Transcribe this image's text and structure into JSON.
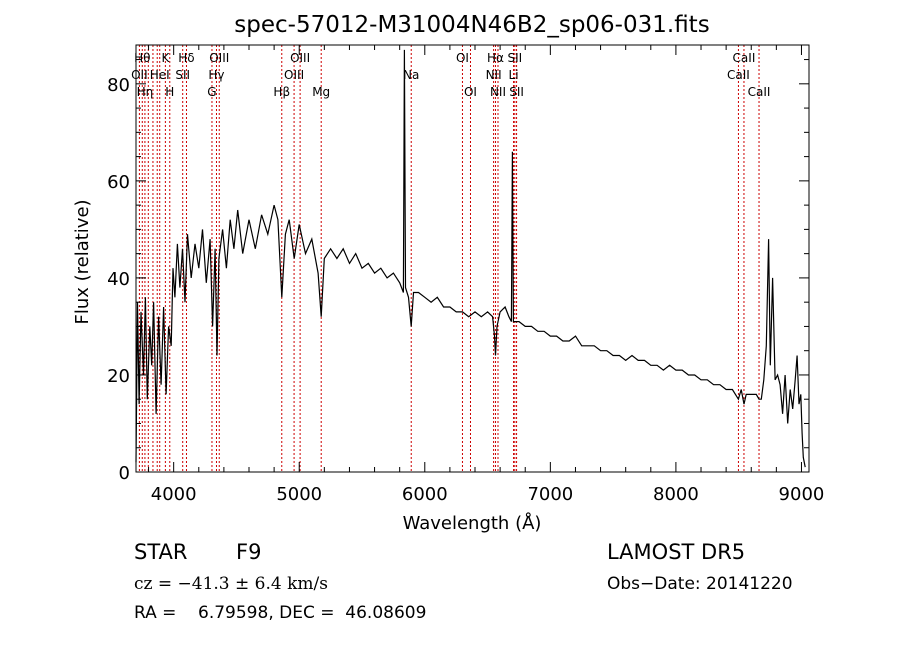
{
  "chart_data": {
    "type": "line",
    "title": "spec-57012-M31004N46B2_sp06-031.fits",
    "xlabel": "Wavelength (Å)",
    "ylabel": "Flux (relative)",
    "xlim": [
      3700,
      9060
    ],
    "ylim": [
      0,
      88
    ],
    "xticks": [
      4000,
      5000,
      6000,
      7000,
      8000,
      9000
    ],
    "yticks": [
      0,
      20,
      40,
      60,
      80
    ],
    "xtick_labels": [
      "4000",
      "5000",
      "6000",
      "7000",
      "8000",
      "9000"
    ],
    "ytick_labels": [
      "0",
      "20",
      "40",
      "60",
      "80"
    ],
    "grid": false,
    "line_color": "#000000",
    "marker_color": "#cc0000",
    "lines": [
      {
        "w": 3727,
        "label": "OII",
        "row": 2
      },
      {
        "w": 3750,
        "label": "Hθ",
        "row": 1
      },
      {
        "w": 3771,
        "label": "Hη",
        "row": 3
      },
      {
        "w": 3798,
        "label": "",
        "row": 0
      },
      {
        "w": 3835,
        "label": "",
        "row": 0
      },
      {
        "w": 3869,
        "label": "",
        "row": 0
      },
      {
        "w": 3889,
        "label": "HeI",
        "row": 2
      },
      {
        "w": 3934,
        "label": "K",
        "row": 1
      },
      {
        "w": 3969,
        "label": "H",
        "row": 3
      },
      {
        "w": 4072,
        "label": "SII",
        "row": 2
      },
      {
        "w": 4102,
        "label": "Hδ",
        "row": 1
      },
      {
        "w": 4305,
        "label": "G",
        "row": 3
      },
      {
        "w": 4341,
        "label": "Hγ",
        "row": 2
      },
      {
        "w": 4363,
        "label": "OIII",
        "row": 1
      },
      {
        "w": 4861,
        "label": "Hβ",
        "row": 3
      },
      {
        "w": 4959,
        "label": "OIII",
        "row": 2
      },
      {
        "w": 5007,
        "label": "OIII",
        "row": 1
      },
      {
        "w": 5175,
        "label": "Mg",
        "row": 3
      },
      {
        "w": 5892,
        "label": "Na",
        "row": 2
      },
      {
        "w": 6300,
        "label": "OI",
        "row": 1
      },
      {
        "w": 6364,
        "label": "OI",
        "row": 3
      },
      {
        "w": 6548,
        "label": "NII",
        "row": 2
      },
      {
        "w": 6563,
        "label": "Hα",
        "row": 1
      },
      {
        "w": 6583,
        "label": "NII",
        "row": 3
      },
      {
        "w": 6707,
        "label": "Li",
        "row": 2
      },
      {
        "w": 6717,
        "label": "SII",
        "row": 1
      },
      {
        "w": 6731,
        "label": "SII",
        "row": 3
      },
      {
        "w": 8498,
        "label": "CaII",
        "row": 2
      },
      {
        "w": 8542,
        "label": "CaII",
        "row": 1
      },
      {
        "w": 8662,
        "label": "CaII",
        "row": 3
      }
    ],
    "spectrum": [
      [
        3700,
        2
      ],
      [
        3712,
        35
      ],
      [
        3725,
        14
      ],
      [
        3740,
        33
      ],
      [
        3760,
        20
      ],
      [
        3775,
        36
      ],
      [
        3790,
        15
      ],
      [
        3810,
        30
      ],
      [
        3825,
        22
      ],
      [
        3840,
        35
      ],
      [
        3860,
        12
      ],
      [
        3880,
        32
      ],
      [
        3900,
        18
      ],
      [
        3920,
        34
      ],
      [
        3940,
        16
      ],
      [
        3960,
        30
      ],
      [
        3980,
        26
      ],
      [
        3995,
        42
      ],
      [
        4010,
        36
      ],
      [
        4030,
        47
      ],
      [
        4050,
        38
      ],
      [
        4070,
        46
      ],
      [
        4090,
        35
      ],
      [
        4110,
        49
      ],
      [
        4140,
        40
      ],
      [
        4170,
        47
      ],
      [
        4200,
        42
      ],
      [
        4230,
        50
      ],
      [
        4260,
        39
      ],
      [
        4290,
        48
      ],
      [
        4310,
        30
      ],
      [
        4330,
        46
      ],
      [
        4345,
        24
      ],
      [
        4360,
        44
      ],
      [
        4390,
        50
      ],
      [
        4420,
        42
      ],
      [
        4450,
        52
      ],
      [
        4480,
        46
      ],
      [
        4510,
        54
      ],
      [
        4550,
        45
      ],
      [
        4600,
        52
      ],
      [
        4650,
        46
      ],
      [
        4700,
        53
      ],
      [
        4750,
        49
      ],
      [
        4800,
        55
      ],
      [
        4830,
        52
      ],
      [
        4861,
        36
      ],
      [
        4890,
        49
      ],
      [
        4920,
        52
      ],
      [
        4960,
        44
      ],
      [
        5000,
        51
      ],
      [
        5050,
        45
      ],
      [
        5100,
        48
      ],
      [
        5150,
        41
      ],
      [
        5175,
        32
      ],
      [
        5200,
        44
      ],
      [
        5250,
        46
      ],
      [
        5300,
        44
      ],
      [
        5350,
        46
      ],
      [
        5400,
        43
      ],
      [
        5450,
        45
      ],
      [
        5500,
        42
      ],
      [
        5550,
        43
      ],
      [
        5600,
        41
      ],
      [
        5650,
        42
      ],
      [
        5700,
        40
      ],
      [
        5750,
        41
      ],
      [
        5800,
        39
      ],
      [
        5830,
        37
      ],
      [
        5838,
        87
      ],
      [
        5846,
        38
      ],
      [
        5870,
        36
      ],
      [
        5892,
        30
      ],
      [
        5910,
        37
      ],
      [
        5950,
        37
      ],
      [
        6000,
        36
      ],
      [
        6050,
        35
      ],
      [
        6100,
        36
      ],
      [
        6150,
        34
      ],
      [
        6200,
        34
      ],
      [
        6250,
        33
      ],
      [
        6300,
        33
      ],
      [
        6350,
        32
      ],
      [
        6400,
        33
      ],
      [
        6450,
        32
      ],
      [
        6500,
        33
      ],
      [
        6540,
        32
      ],
      [
        6555,
        28
      ],
      [
        6563,
        24
      ],
      [
        6575,
        30
      ],
      [
        6600,
        33
      ],
      [
        6640,
        34
      ],
      [
        6670,
        32
      ],
      [
        6690,
        31
      ],
      [
        6698,
        66
      ],
      [
        6706,
        31
      ],
      [
        6750,
        31
      ],
      [
        6800,
        30
      ],
      [
        6850,
        30
      ],
      [
        6900,
        29
      ],
      [
        6950,
        29
      ],
      [
        7000,
        28
      ],
      [
        7050,
        28
      ],
      [
        7100,
        27
      ],
      [
        7150,
        27
      ],
      [
        7200,
        28
      ],
      [
        7250,
        26
      ],
      [
        7300,
        26
      ],
      [
        7350,
        26
      ],
      [
        7400,
        25
      ],
      [
        7450,
        25
      ],
      [
        7500,
        24
      ],
      [
        7550,
        24
      ],
      [
        7600,
        23
      ],
      [
        7650,
        24
      ],
      [
        7700,
        23
      ],
      [
        7750,
        23
      ],
      [
        7800,
        22
      ],
      [
        7850,
        22
      ],
      [
        7900,
        21
      ],
      [
        7950,
        22
      ],
      [
        8000,
        21
      ],
      [
        8050,
        21
      ],
      [
        8100,
        20
      ],
      [
        8150,
        20
      ],
      [
        8200,
        19
      ],
      [
        8250,
        19
      ],
      [
        8300,
        18
      ],
      [
        8350,
        18
      ],
      [
        8400,
        17
      ],
      [
        8450,
        17
      ],
      [
        8498,
        15
      ],
      [
        8520,
        17
      ],
      [
        8542,
        14
      ],
      [
        8560,
        16
      ],
      [
        8600,
        16
      ],
      [
        8640,
        16
      ],
      [
        8662,
        15
      ],
      [
        8680,
        15
      ],
      [
        8700,
        19
      ],
      [
        8720,
        26
      ],
      [
        8738,
        48
      ],
      [
        8752,
        22
      ],
      [
        8770,
        40
      ],
      [
        8790,
        19
      ],
      [
        8810,
        20
      ],
      [
        8830,
        18
      ],
      [
        8850,
        12
      ],
      [
        8870,
        20
      ],
      [
        8890,
        10
      ],
      [
        8910,
        17
      ],
      [
        8930,
        13
      ],
      [
        8950,
        19
      ],
      [
        8965,
        24
      ],
      [
        8980,
        14
      ],
      [
        8995,
        16
      ],
      [
        9005,
        8
      ],
      [
        9015,
        3
      ],
      [
        9030,
        1
      ]
    ]
  },
  "info": {
    "object_type": "STAR",
    "subclass": "F9",
    "survey": "LAMOST DR5",
    "redshift": "cz = −41.3 ± 6.4 km/s",
    "obs_date": "Obs−Date: 20141220",
    "coords": "RA =    6.79598, DEC =  46.08609"
  }
}
